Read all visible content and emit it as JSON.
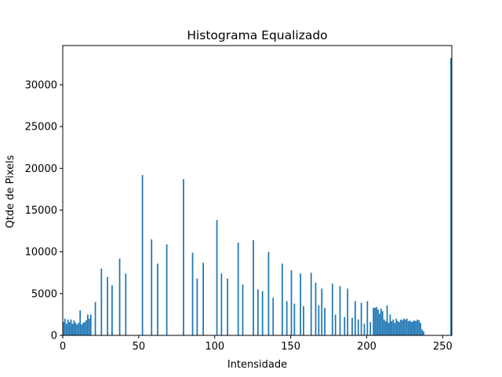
{
  "chart_data": {
    "type": "bar",
    "title": "Histograma Equalizado",
    "xlabel": "Intensidade",
    "ylabel": "Qtde de Pixels",
    "xlim": [
      0,
      256
    ],
    "ylim": [
      0,
      34700
    ],
    "xticks": [
      0,
      50,
      100,
      150,
      200,
      250
    ],
    "yticks": [
      0,
      5000,
      10000,
      15000,
      20000,
      25000,
      30000
    ],
    "grid": false,
    "bar_color": "#1f77b4",
    "series": [
      {
        "x": [
          0,
          1,
          2,
          3,
          4,
          5,
          6,
          7,
          8,
          9,
          10,
          11,
          12,
          13,
          14,
          15,
          16,
          17,
          18,
          21,
          25,
          29,
          32,
          37,
          41,
          52,
          58,
          62,
          68,
          79,
          85,
          88,
          92,
          101,
          104,
          108,
          115,
          118,
          125,
          128,
          131,
          135,
          138,
          144,
          147,
          150,
          152,
          156,
          158,
          163,
          166,
          168,
          170,
          172,
          177,
          179,
          182,
          185,
          187,
          190,
          192,
          194,
          196,
          198,
          200,
          202,
          204,
          205,
          206,
          207,
          208,
          209,
          210,
          211,
          212,
          213,
          214,
          215,
          216,
          217,
          218,
          219,
          220,
          221,
          222,
          223,
          224,
          225,
          226,
          227,
          228,
          229,
          230,
          231,
          232,
          233,
          234,
          235,
          236,
          237,
          255
        ],
        "values": [
          1600,
          2000,
          1400,
          1900,
          1600,
          1900,
          1400,
          1800,
          1500,
          1300,
          1500,
          3000,
          1300,
          1500,
          1600,
          1800,
          2500,
          2000,
          2500,
          4000,
          8000,
          7000,
          6000,
          9200,
          7400,
          19200,
          11500,
          8600,
          10900,
          18700,
          9900,
          6800,
          8700,
          13800,
          7400,
          6800,
          11100,
          6100,
          11400,
          5500,
          5300,
          10000,
          4500,
          8600,
          4100,
          7800,
          3800,
          7400,
          3500,
          7500,
          6300,
          3600,
          5600,
          3300,
          6200,
          2500,
          5900,
          2200,
          5600,
          2100,
          4100,
          1900,
          3900,
          1400,
          4100,
          1600,
          3300,
          3300,
          3400,
          3100,
          2600,
          3200,
          2900,
          1900,
          1700,
          3600,
          1500,
          2500,
          1700,
          1900,
          1500,
          2000,
          1700,
          1600,
          1900,
          1800,
          2000,
          1900,
          2000,
          1700,
          1800,
          1600,
          1700,
          1800,
          1700,
          1900,
          1800,
          1500,
          700,
          500,
          33200
        ]
      }
    ]
  }
}
